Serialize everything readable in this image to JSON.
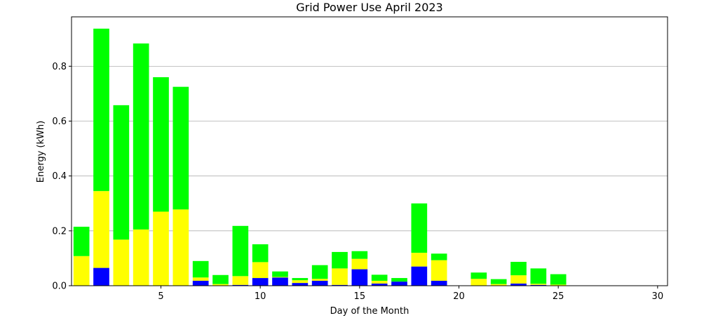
{
  "chart_data": {
    "type": "bar",
    "stacked": true,
    "title": "Grid Power Use April 2023",
    "xlabel": "Day of the Month",
    "ylabel": "Energy (kWh)",
    "xlim": [
      0.5,
      30.5
    ],
    "ylim": [
      0,
      0.98
    ],
    "xticks": [
      5,
      10,
      15,
      20,
      25,
      30
    ],
    "yticks": [
      0.0,
      0.2,
      0.4,
      0.6,
      0.8
    ],
    "ytick_labels": [
      "0.0",
      "0.2",
      "0.4",
      "0.6",
      "0.8"
    ],
    "grid": "y",
    "x": [
      1,
      2,
      3,
      4,
      5,
      6,
      7,
      8,
      9,
      10,
      11,
      12,
      13,
      14,
      15,
      16,
      17,
      18,
      19,
      20,
      21,
      22,
      23,
      24,
      25,
      26,
      27,
      28,
      29,
      30
    ],
    "series": [
      {
        "color": "#0000ff",
        "values": [
          0.0,
          0.065,
          0.0,
          0.0,
          0.0,
          0.0,
          0.018,
          0.0,
          0.003,
          0.028,
          0.03,
          0.01,
          0.018,
          0.003,
          0.06,
          0.008,
          0.015,
          0.07,
          0.018,
          0,
          0,
          0,
          0.008,
          0.003,
          0,
          0,
          0,
          0,
          0,
          0
        ]
      },
      {
        "color": "#ffff00",
        "values": [
          0.108,
          0.28,
          0.168,
          0.205,
          0.27,
          0.278,
          0.012,
          0.006,
          0.032,
          0.058,
          0.002,
          0.01,
          0.007,
          0.06,
          0.038,
          0.01,
          0.0,
          0.05,
          0.075,
          0,
          0.025,
          0.006,
          0.03,
          0.004,
          0.004,
          0,
          0,
          0,
          0,
          0
        ]
      },
      {
        "color": "#00ff00",
        "values": [
          0.107,
          0.592,
          0.49,
          0.678,
          0.49,
          0.447,
          0.06,
          0.033,
          0.183,
          0.065,
          0.02,
          0.008,
          0.05,
          0.06,
          0.028,
          0.022,
          0.013,
          0.18,
          0.024,
          0,
          0.023,
          0.018,
          0.049,
          0.056,
          0.038,
          0,
          0,
          0,
          0,
          0
        ]
      }
    ]
  }
}
